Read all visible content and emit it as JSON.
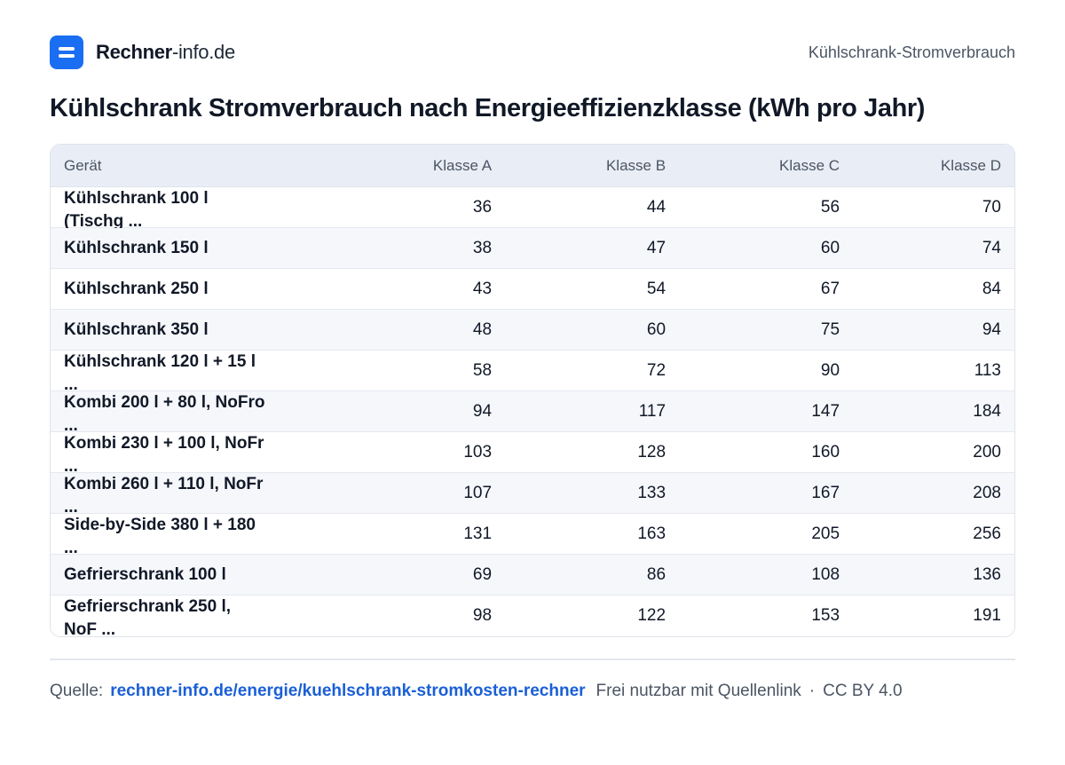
{
  "header": {
    "brand_bold": "Rechner",
    "brand_rest": "-info.de",
    "page_label": "Kühlschrank-Stromverbrauch"
  },
  "colors": {
    "accent": "#1a6ef2",
    "link": "#1a5fd6",
    "header_bg": "#e9eef6",
    "row_alt": "#f5f7fb"
  },
  "chart_data": {
    "type": "table",
    "title": "Kühlschrank Stromverbrauch nach Energieeffizienzklasse (kWh pro Jahr)",
    "columns": [
      "Gerät",
      "Klasse A",
      "Klasse B",
      "Klasse C",
      "Klasse D"
    ],
    "rows": [
      {
        "label": "Kühlschrank 100 l (Tischg ...",
        "values": [
          36,
          44,
          56,
          70
        ]
      },
      {
        "label": "Kühlschrank 150 l",
        "values": [
          38,
          47,
          60,
          74
        ]
      },
      {
        "label": "Kühlschrank 250 l",
        "values": [
          43,
          54,
          67,
          84
        ]
      },
      {
        "label": "Kühlschrank 350 l",
        "values": [
          48,
          60,
          75,
          94
        ]
      },
      {
        "label": "Kühlschrank 120 l + 15 l ...",
        "values": [
          58,
          72,
          90,
          113
        ]
      },
      {
        "label": "Kombi 200 l + 80 l, NoFro ...",
        "values": [
          94,
          117,
          147,
          184
        ]
      },
      {
        "label": "Kombi 230 l + 100 l, NoFr ...",
        "values": [
          103,
          128,
          160,
          200
        ]
      },
      {
        "label": "Kombi 260 l + 110 l, NoFr ...",
        "values": [
          107,
          133,
          167,
          208
        ]
      },
      {
        "label": "Side-by-Side 380 l + 180 ...",
        "values": [
          131,
          163,
          205,
          256
        ]
      },
      {
        "label": "Gefrierschrank 100 l",
        "values": [
          69,
          86,
          108,
          136
        ]
      },
      {
        "label": "Gefrierschrank 250 l, NoF ...",
        "values": [
          98,
          122,
          153,
          191
        ]
      }
    ]
  },
  "footer": {
    "source_label": "Quelle:",
    "source_link": "rechner-info.de/energie/kuehlschrank-stromkosten-rechner",
    "license_note": "Frei nutzbar mit Quellenlink",
    "separator": "·",
    "license": "CC BY 4.0"
  }
}
